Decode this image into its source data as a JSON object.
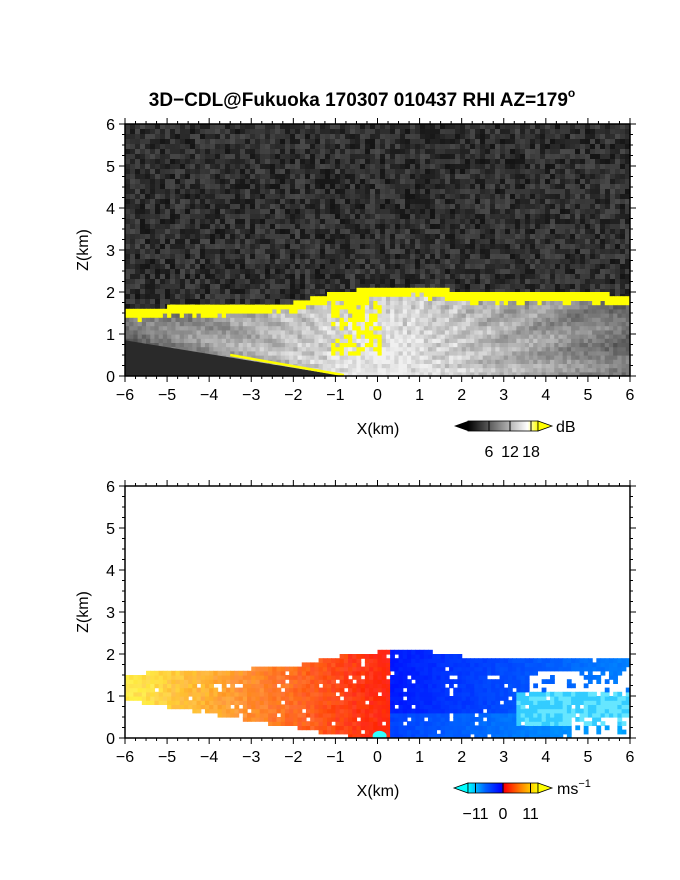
{
  "figure": {
    "title": "3D−CDL@Fukuoka 170307 010437 RHI AZ=179",
    "title_superscript": "o"
  },
  "chart_data": [
    {
      "type": "heatmap",
      "quantity": "backscatter intensity",
      "xlabel": "X(km)",
      "ylabel": "Z(km)",
      "xlim": [
        -6,
        6
      ],
      "ylim": [
        0,
        6
      ],
      "xticks": [
        "−6",
        "−5",
        "−4",
        "−3",
        "−2",
        "−1",
        "0",
        "1",
        "2",
        "3",
        "4",
        "5",
        "6"
      ],
      "yticks": [
        "0",
        "1",
        "2",
        "3",
        "4",
        "5",
        "6"
      ],
      "grid": false,
      "colorbar": {
        "unit": "dB",
        "tick_values": [
          6,
          12,
          18
        ],
        "tick_labels": [
          "6",
          "12",
          "18"
        ],
        "range": [
          0,
          20
        ],
        "colors": [
          "#000000",
          "#ffffff",
          "#ffff00"
        ]
      },
      "cloud_top_km": [
        {
          "x": -6,
          "z": 1.5
        },
        {
          "x": -5,
          "z": 1.6
        },
        {
          "x": -4,
          "z": 1.62
        },
        {
          "x": -3,
          "z": 1.65
        },
        {
          "x": -2,
          "z": 1.7
        },
        {
          "x": -1,
          "z": 1.95
        },
        {
          "x": 0,
          "z": 2.05
        },
        {
          "x": 1,
          "z": 2.1
        },
        {
          "x": 2,
          "z": 1.95
        },
        {
          "x": 3,
          "z": 1.9
        },
        {
          "x": 4,
          "z": 1.95
        },
        {
          "x": 5,
          "z": 1.95
        },
        {
          "x": 6,
          "z": 1.85
        }
      ]
    },
    {
      "type": "heatmap",
      "quantity": "radial velocity",
      "xlabel": "X(km)",
      "ylabel": "Z(km)",
      "xlim": [
        -6,
        6
      ],
      "ylim": [
        0,
        6
      ],
      "xticks": [
        "−6",
        "−5",
        "−4",
        "−3",
        "−2",
        "−1",
        "0",
        "1",
        "2",
        "3",
        "4",
        "5",
        "6"
      ],
      "yticks": [
        "0",
        "1",
        "2",
        "3",
        "4",
        "5",
        "6"
      ],
      "grid": false,
      "colorbar": {
        "unit": "ms",
        "unit_exponent": "−1",
        "tick_values": [
          -11,
          0,
          11
        ],
        "tick_labels": [
          "−11",
          "0",
          "11"
        ],
        "range": [
          -14,
          14
        ],
        "colors": [
          "#00ffff",
          "#0000ff",
          "#ff0000",
          "#ffff00"
        ]
      },
      "velocity_sign_change_x_km": 0.2
    }
  ]
}
